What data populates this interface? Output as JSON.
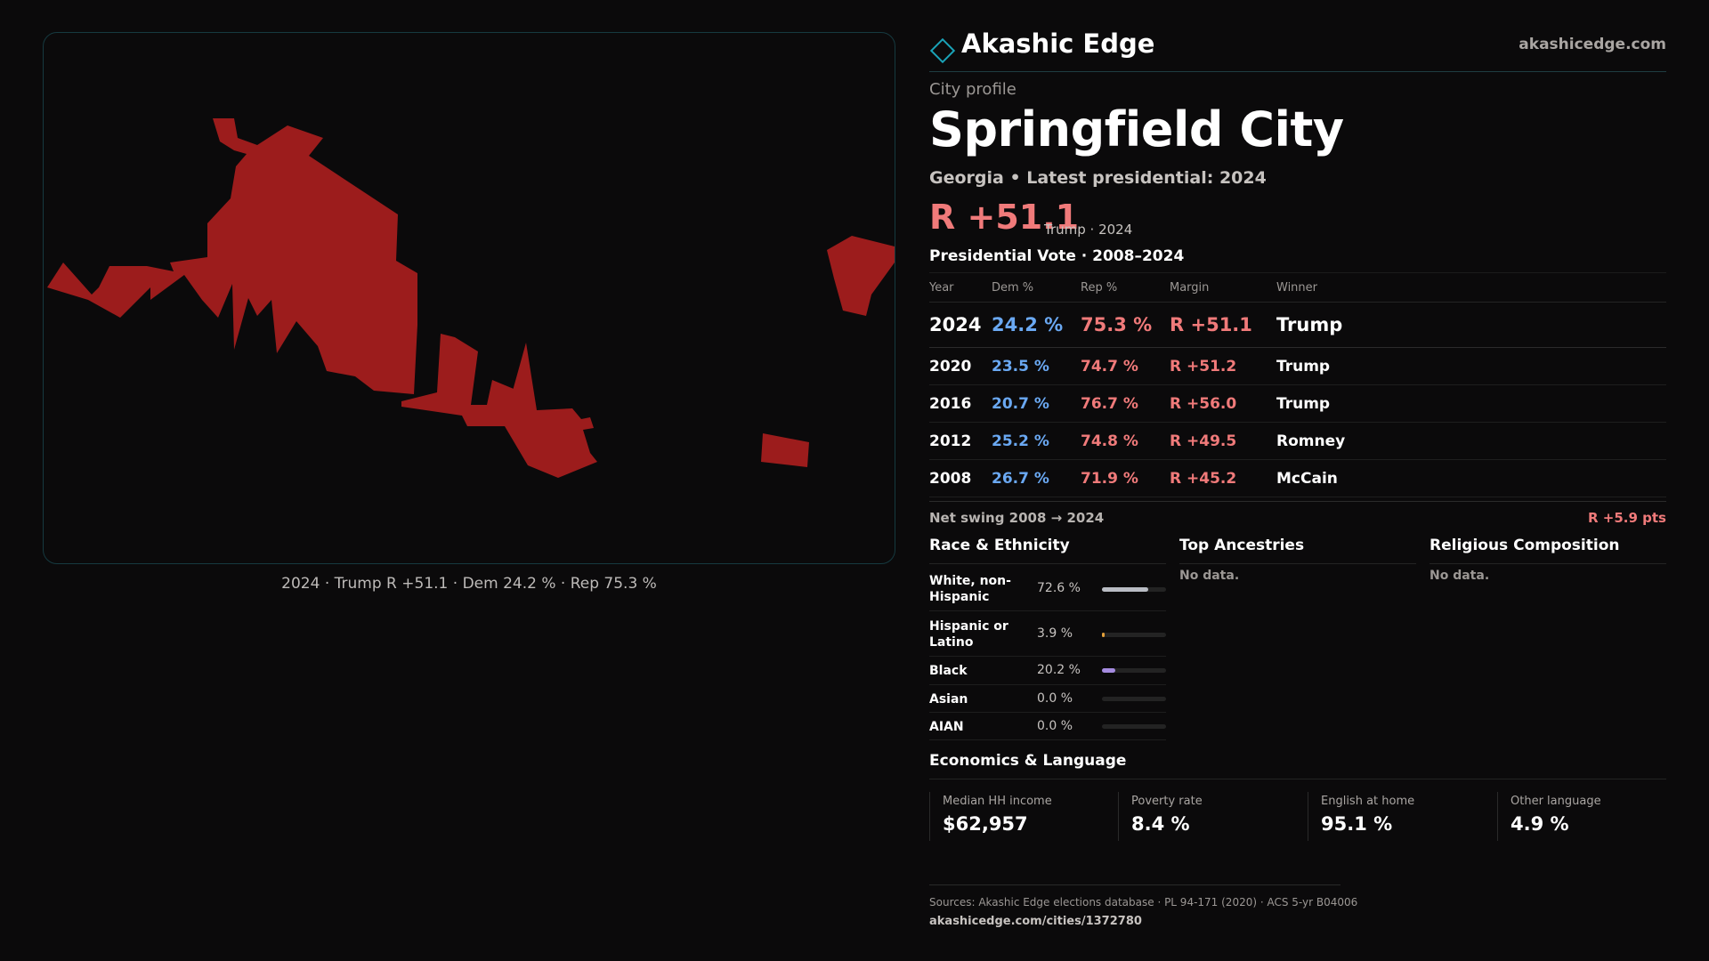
{
  "brand": {
    "name": "Akashic Edge",
    "url": "akashicedge.com",
    "accent": "#1aa3b8"
  },
  "map": {
    "fill_color": "#9c1c1c",
    "caption": "2024 · Trump R +51.1 · Dem 24.2 % · Rep 75.3 %"
  },
  "profile": {
    "kicker": "City profile",
    "title": "Springfield City",
    "subtitle": "Georgia • Latest presidential: 2024",
    "margin": "R +51.1",
    "margin_note": "Trump · 2024"
  },
  "vote": {
    "heading": "Presidential Vote · 2008–2024",
    "columns": [
      "Year",
      "Dem %",
      "Rep %",
      "Margin",
      "Winner"
    ],
    "rows": [
      {
        "year": "2024",
        "dem": "24.2 %",
        "rep": "75.3 %",
        "margin": "R +51.1",
        "winner": "Trump"
      },
      {
        "year": "2020",
        "dem": "23.5 %",
        "rep": "74.7 %",
        "margin": "R +51.2",
        "winner": "Trump"
      },
      {
        "year": "2016",
        "dem": "20.7 %",
        "rep": "76.7 %",
        "margin": "R +56.0",
        "winner": "Trump"
      },
      {
        "year": "2012",
        "dem": "25.2 %",
        "rep": "74.8 %",
        "margin": "R +49.5",
        "winner": "Romney"
      },
      {
        "year": "2008",
        "dem": "26.7 %",
        "rep": "71.9 %",
        "margin": "R +45.2",
        "winner": "McCain"
      }
    ],
    "dem_color": "#6aa8f2",
    "rep_color": "#f07a7a",
    "swing_label": "Net swing 2008 → 2024",
    "swing_value": "R +5.9 pts"
  },
  "race": {
    "heading": "Race & Ethnicity",
    "rows": [
      {
        "name": "White, non-Hispanic",
        "pct": "72.6 %",
        "value": 72.6,
        "color": "#b9bcc4"
      },
      {
        "name": "Hispanic or Latino",
        "pct": "3.9 %",
        "value": 3.9,
        "color": "#e3a03a"
      },
      {
        "name": "Black",
        "pct": "20.2 %",
        "value": 20.2,
        "color": "#a58be0"
      },
      {
        "name": "Asian",
        "pct": "0.0 %",
        "value": 0.0,
        "color": "#4fb3c4"
      },
      {
        "name": "AIAN",
        "pct": "0.0 %",
        "value": 0.0,
        "color": "#7bbf6a"
      }
    ]
  },
  "ancestries": {
    "heading": "Top Ancestries",
    "empty": "No data."
  },
  "religion": {
    "heading": "Religious Composition",
    "empty": "No data."
  },
  "economics": {
    "heading": "Economics & Language",
    "stats": [
      {
        "label": "Median HH income",
        "value": "$62,957"
      },
      {
        "label": "Poverty rate",
        "value": "8.4 %"
      },
      {
        "label": "English at home",
        "value": "95.1 %"
      },
      {
        "label": "Other language",
        "value": "4.9 %"
      }
    ]
  },
  "sources": {
    "line": "Sources: Akashic Edge elections database · PL 94-171 (2020) · ACS 5-yr B04006",
    "url": "akashicedge.com/cities/1372780"
  }
}
